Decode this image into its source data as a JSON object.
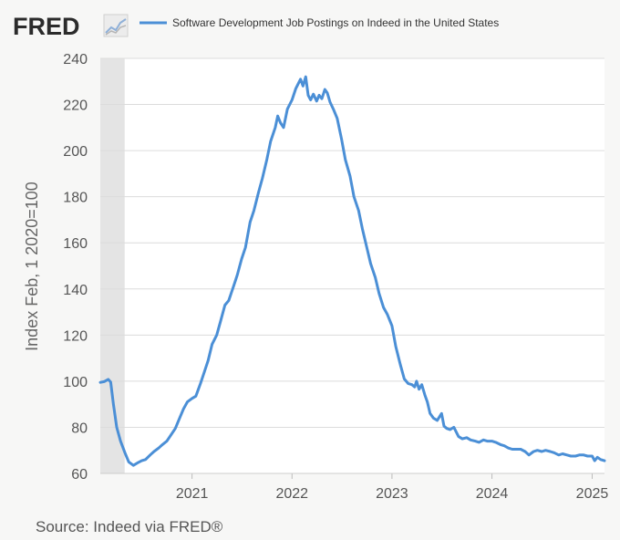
{
  "brand": {
    "name": "FRED",
    "logo_icon": "line-graph-icon"
  },
  "source_note": "Source: Indeed via FRED®",
  "colors": {
    "series": "#4b8fd6",
    "grid": "#dcdcdc",
    "recession": "#e4e4e4",
    "plot_bg": "#ffffff"
  },
  "chart_data": {
    "type": "line",
    "title": "",
    "xlabel": "",
    "ylabel": "Index Feb, 1 2020=100",
    "ylim": [
      60,
      240
    ],
    "xlim": [
      "2020-02-01",
      "2025-02-15"
    ],
    "yticks": [
      "60",
      "80",
      "100",
      "120",
      "140",
      "160",
      "180",
      "200",
      "220",
      "240"
    ],
    "xticks": [
      {
        "label": "2021",
        "date": "2021-01-01"
      },
      {
        "label": "2022",
        "date": "2022-01-01"
      },
      {
        "label": "2023",
        "date": "2023-01-01"
      },
      {
        "label": "2024",
        "date": "2024-01-01"
      },
      {
        "label": "2025",
        "date": "2025-01-01"
      }
    ],
    "grid": true,
    "legend": "top",
    "recession_band": [
      "2020-02-01",
      "2020-04-30"
    ],
    "series": [
      {
        "name": "Software Development Job Postings on Indeed in the United States",
        "points": [
          [
            "2020-02-01",
            99.5
          ],
          [
            "2020-02-15",
            99.8
          ],
          [
            "2020-03-01",
            100.8
          ],
          [
            "2020-03-10",
            99.6
          ],
          [
            "2020-03-20",
            90
          ],
          [
            "2020-04-01",
            80
          ],
          [
            "2020-04-15",
            74
          ],
          [
            "2020-05-01",
            69
          ],
          [
            "2020-05-15",
            65
          ],
          [
            "2020-06-01",
            63.5
          ],
          [
            "2020-06-15",
            64.5
          ],
          [
            "2020-07-01",
            65.5
          ],
          [
            "2020-07-15",
            66
          ],
          [
            "2020-08-01",
            68
          ],
          [
            "2020-08-15",
            69.5
          ],
          [
            "2020-09-01",
            71
          ],
          [
            "2020-09-15",
            72.5
          ],
          [
            "2020-10-01",
            74
          ],
          [
            "2020-10-15",
            76.5
          ],
          [
            "2020-11-01",
            79.5
          ],
          [
            "2020-11-15",
            83.5
          ],
          [
            "2020-12-01",
            88
          ],
          [
            "2020-12-15",
            91
          ],
          [
            "2021-01-01",
            92.5
          ],
          [
            "2021-01-15",
            93.5
          ],
          [
            "2021-02-01",
            99
          ],
          [
            "2021-02-15",
            104
          ],
          [
            "2021-03-01",
            109
          ],
          [
            "2021-03-15",
            116
          ],
          [
            "2021-04-01",
            120
          ],
          [
            "2021-04-15",
            126
          ],
          [
            "2021-05-01",
            133
          ],
          [
            "2021-05-15",
            135
          ],
          [
            "2021-06-01",
            141
          ],
          [
            "2021-06-15",
            146
          ],
          [
            "2021-07-01",
            153
          ],
          [
            "2021-07-15",
            158
          ],
          [
            "2021-08-01",
            169
          ],
          [
            "2021-08-15",
            174
          ],
          [
            "2021-09-01",
            182
          ],
          [
            "2021-09-15",
            188
          ],
          [
            "2021-10-01",
            196
          ],
          [
            "2021-10-15",
            204
          ],
          [
            "2021-11-01",
            210
          ],
          [
            "2021-11-10",
            215
          ],
          [
            "2021-11-20",
            212
          ],
          [
            "2021-12-01",
            210
          ],
          [
            "2021-12-15",
            218
          ],
          [
            "2022-01-01",
            222
          ],
          [
            "2022-01-15",
            227
          ],
          [
            "2022-02-01",
            231
          ],
          [
            "2022-02-10",
            228
          ],
          [
            "2022-02-20",
            232
          ],
          [
            "2022-03-01",
            224
          ],
          [
            "2022-03-10",
            222
          ],
          [
            "2022-03-20",
            224.5
          ],
          [
            "2022-04-01",
            221.5
          ],
          [
            "2022-04-10",
            224
          ],
          [
            "2022-04-20",
            222.5
          ],
          [
            "2022-05-01",
            226.5
          ],
          [
            "2022-05-10",
            225
          ],
          [
            "2022-05-20",
            221
          ],
          [
            "2022-06-01",
            218
          ],
          [
            "2022-06-15",
            214
          ],
          [
            "2022-07-01",
            205
          ],
          [
            "2022-07-15",
            196
          ],
          [
            "2022-08-01",
            189
          ],
          [
            "2022-08-15",
            180
          ],
          [
            "2022-09-01",
            174
          ],
          [
            "2022-09-15",
            166
          ],
          [
            "2022-10-01",
            158
          ],
          [
            "2022-10-15",
            151
          ],
          [
            "2022-11-01",
            145
          ],
          [
            "2022-11-15",
            138
          ],
          [
            "2022-12-01",
            132
          ],
          [
            "2022-12-15",
            129
          ],
          [
            "2023-01-01",
            124
          ],
          [
            "2023-01-15",
            115
          ],
          [
            "2023-02-01",
            107
          ],
          [
            "2023-02-15",
            101
          ],
          [
            "2023-03-01",
            99
          ],
          [
            "2023-03-15",
            98.5
          ],
          [
            "2023-03-25",
            97.5
          ],
          [
            "2023-04-01",
            100
          ],
          [
            "2023-04-10",
            96.5
          ],
          [
            "2023-04-20",
            98.5
          ],
          [
            "2023-05-01",
            94
          ],
          [
            "2023-05-10",
            91
          ],
          [
            "2023-05-20",
            86
          ],
          [
            "2023-06-01",
            84
          ],
          [
            "2023-06-15",
            83
          ],
          [
            "2023-07-01",
            86
          ],
          [
            "2023-07-10",
            80.5
          ],
          [
            "2023-07-20",
            79.5
          ],
          [
            "2023-08-01",
            79
          ],
          [
            "2023-08-15",
            80
          ],
          [
            "2023-09-01",
            76
          ],
          [
            "2023-09-15",
            75
          ],
          [
            "2023-10-01",
            75.5
          ],
          [
            "2023-10-15",
            74.5
          ],
          [
            "2023-11-01",
            74
          ],
          [
            "2023-11-15",
            73.5
          ],
          [
            "2023-12-01",
            74.5
          ],
          [
            "2023-12-15",
            74
          ],
          [
            "2024-01-01",
            74
          ],
          [
            "2024-01-15",
            73.5
          ],
          [
            "2024-02-01",
            72.5
          ],
          [
            "2024-02-15",
            72
          ],
          [
            "2024-03-01",
            71
          ],
          [
            "2024-03-15",
            70.5
          ],
          [
            "2024-04-01",
            70.5
          ],
          [
            "2024-04-15",
            70.5
          ],
          [
            "2024-05-01",
            69.5
          ],
          [
            "2024-05-15",
            68
          ],
          [
            "2024-06-01",
            69.5
          ],
          [
            "2024-06-15",
            70
          ],
          [
            "2024-07-01",
            69.5
          ],
          [
            "2024-07-15",
            70
          ],
          [
            "2024-08-01",
            69.5
          ],
          [
            "2024-08-15",
            69
          ],
          [
            "2024-09-01",
            68
          ],
          [
            "2024-09-15",
            68.5
          ],
          [
            "2024-10-01",
            68
          ],
          [
            "2024-10-15",
            67.5
          ],
          [
            "2024-11-01",
            67.5
          ],
          [
            "2024-11-15",
            68
          ],
          [
            "2024-12-01",
            68
          ],
          [
            "2024-12-15",
            67.5
          ],
          [
            "2025-01-01",
            67.5
          ],
          [
            "2025-01-10",
            65.5
          ],
          [
            "2025-01-20",
            67
          ],
          [
            "2025-02-01",
            66
          ],
          [
            "2025-02-15",
            65.5
          ]
        ]
      }
    ]
  }
}
